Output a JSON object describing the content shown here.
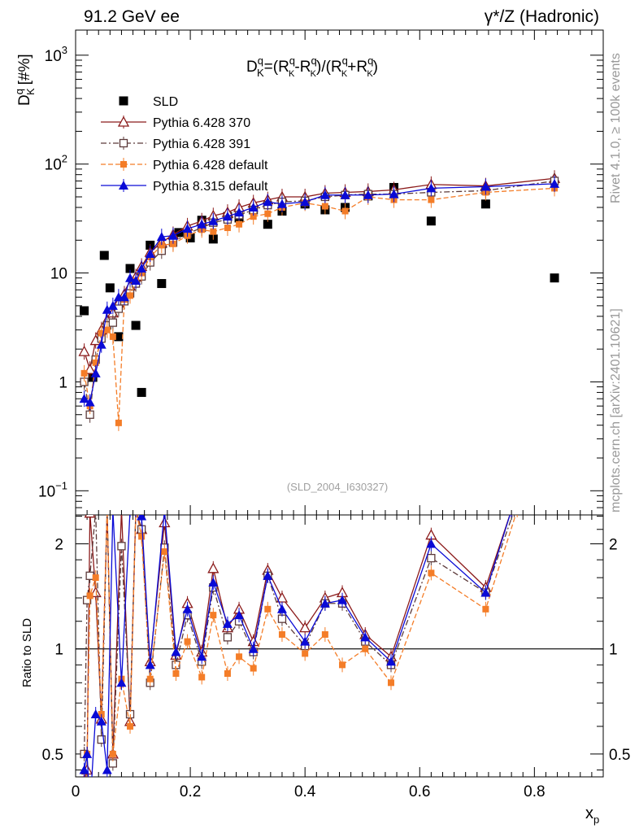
{
  "header": {
    "energy_label": "91.2 GeV ee",
    "process_label": "γ*/Z (Hadronic)"
  },
  "side_labels": {
    "rivet": "Rivet 4.1.0, ≥ 100k events",
    "mcplots": "mcplots.cern.ch [arXiv:2401.10621]"
  },
  "watermark": "(SLD_2004_I630327)",
  "formula": {
    "lhs": "D",
    "lhs_sup": "q",
    "lhs_sub": "K",
    "eq": "=(R",
    "r1_sup": "q",
    "r1_sub": "K",
    "minus": "-R",
    "r2_sup": "q",
    "r2_sub": "K",
    "mid": ")/(R",
    "r3_sup": "q",
    "r3_sub": "K",
    "plus": "+R",
    "r4_sup": "q",
    "r4_sub": "K",
    "close": ")"
  },
  "chart_data": {
    "type": "scatter",
    "main_panel": {
      "ylabel_main": "D",
      "ylabel_sup": "q",
      "ylabel_sub": "K",
      "ylabel_unit": "[#%]",
      "yscale": "log",
      "ylim": [
        0.06,
        1700
      ],
      "yticks": [
        {
          "value": 0.1,
          "label": "10",
          "sup": "−1"
        },
        {
          "value": 1,
          "label": "1",
          "sup": ""
        },
        {
          "value": 10,
          "label": "10",
          "sup": ""
        },
        {
          "value": 100,
          "label": "10",
          "sup": "2"
        },
        {
          "value": 1000,
          "label": "10",
          "sup": "3"
        }
      ]
    },
    "ratio_panel": {
      "ylabel": "Ratio to SLD",
      "yscale": "log",
      "ylim": [
        0.43,
        2.42
      ],
      "yticks_left": [
        {
          "value": 0.5,
          "label": "0.5"
        },
        {
          "value": 1,
          "label": "1"
        },
        {
          "value": 2,
          "label": "2"
        }
      ],
      "yticks_right": [
        {
          "value": 0.5,
          "label": "0.5"
        },
        {
          "value": 1,
          "label": "1"
        },
        {
          "value": 2,
          "label": "2"
        }
      ]
    },
    "x_axis": {
      "label": "x",
      "label_sub": "p",
      "xlim": [
        0,
        0.92
      ],
      "ticks": [
        {
          "value": 0,
          "label": "0"
        },
        {
          "value": 0.2,
          "label": "0.2"
        },
        {
          "value": 0.4,
          "label": "0.4"
        },
        {
          "value": 0.6,
          "label": "0.6"
        },
        {
          "value": 0.8,
          "label": "0.8"
        }
      ]
    },
    "legend": {
      "position": "top-left",
      "entries": [
        "SLD",
        "Pythia 6.428 370",
        "Pythia 6.428 391",
        "Pythia 6.428 default",
        "Pythia 8.315 default"
      ]
    },
    "series": [
      {
        "name": "SLD",
        "role": "data",
        "marker": "square-filled",
        "color": "#000000",
        "x": [
          0.015,
          0.03,
          0.05,
          0.06,
          0.075,
          0.095,
          0.105,
          0.115,
          0.13,
          0.15,
          0.18,
          0.2,
          0.22,
          0.24,
          0.265,
          0.285,
          0.31,
          0.335,
          0.36,
          0.4,
          0.435,
          0.47,
          0.51,
          0.555,
          0.62,
          0.715,
          0.835
        ],
        "y": [
          4.5,
          1.1,
          14.5,
          7.3,
          2.6,
          11.0,
          3.3,
          0.8,
          18.0,
          8.0,
          23.5,
          21.0,
          30.5,
          20.5,
          33.0,
          32.0,
          38.0,
          28.0,
          37.0,
          43.0,
          38.0,
          40.0,
          51.0,
          61.0,
          30.0,
          43.0,
          9.0
        ]
      },
      {
        "name": "Pythia 6.428 370",
        "marker": "triangle-open",
        "color": "#8b1a1a",
        "dash": "",
        "x": [
          0.015,
          0.025,
          0.035,
          0.045,
          0.055,
          0.065,
          0.075,
          0.085,
          0.095,
          0.105,
          0.115,
          0.13,
          0.15,
          0.17,
          0.195,
          0.22,
          0.24,
          0.265,
          0.285,
          0.31,
          0.335,
          0.36,
          0.4,
          0.435,
          0.47,
          0.51,
          0.555,
          0.62,
          0.715,
          0.835
        ],
        "y": [
          1.9,
          1.3,
          2.4,
          3.0,
          3.7,
          4.3,
          5.3,
          6.4,
          7.6,
          9.2,
          11.5,
          15.5,
          19.0,
          22.5,
          27.0,
          30.0,
          33.5,
          36.0,
          40.0,
          44.0,
          47.0,
          50.0,
          50.0,
          54.0,
          55.0,
          56.0,
          58.0,
          65.0,
          63.0,
          74.0
        ],
        "ratio": {
          "x": [
            0.015,
            0.02,
            0.025,
            0.035,
            0.045,
            0.055,
            0.065,
            0.08,
            0.095,
            0.105,
            0.115,
            0.13,
            0.155,
            0.175,
            0.195,
            0.22,
            0.24,
            0.265,
            0.285,
            0.31,
            0.335,
            0.36,
            0.4,
            0.435,
            0.465,
            0.505,
            0.55,
            0.62,
            0.715,
            0.76
          ],
          "y": [
            0.42,
            0.45,
            2.45,
            1.45,
            0.63,
            2.5,
            0.5,
            2.5,
            0.62,
            2.5,
            2.2,
            0.92,
            2.3,
            0.96,
            1.35,
            0.98,
            1.7,
            1.15,
            1.3,
            1.05,
            1.68,
            1.4,
            1.15,
            1.4,
            1.45,
            1.1,
            0.95,
            2.12,
            1.5,
            2.5
          ]
        }
      },
      {
        "name": "Pythia 6.428 391",
        "marker": "square-open",
        "color": "#5c3a3a",
        "dash": "7,3,2,3",
        "x": [
          0.015,
          0.025,
          0.035,
          0.045,
          0.055,
          0.065,
          0.075,
          0.085,
          0.095,
          0.105,
          0.115,
          0.13,
          0.15,
          0.17,
          0.195,
          0.22,
          0.24,
          0.265,
          0.285,
          0.31,
          0.335,
          0.36,
          0.4,
          0.435,
          0.47,
          0.51,
          0.555,
          0.62,
          0.715,
          0.835
        ],
        "y": [
          1.0,
          0.5,
          1.6,
          2.5,
          3.3,
          3.5,
          4.7,
          5.5,
          6.5,
          8.0,
          9.3,
          12.5,
          16.0,
          19.0,
          23.0,
          26.0,
          29.0,
          31.0,
          34.0,
          38.0,
          42.0,
          45.0,
          46.0,
          50.0,
          52.0,
          53.0,
          53.0,
          55.0,
          57.0,
          70.0
        ],
        "ratio": {
          "x": [
            0.015,
            0.02,
            0.025,
            0.035,
            0.045,
            0.055,
            0.065,
            0.08,
            0.095,
            0.105,
            0.115,
            0.13,
            0.155,
            0.175,
            0.195,
            0.22,
            0.24,
            0.265,
            0.285,
            0.31,
            0.335,
            0.36,
            0.4,
            0.435,
            0.465,
            0.505,
            0.55,
            0.62,
            0.715,
            0.765
          ],
          "y": [
            0.5,
            1.38,
            1.62,
            2.5,
            0.55,
            2.5,
            0.47,
            1.97,
            0.65,
            2.5,
            2.2,
            0.8,
            1.95,
            0.9,
            1.25,
            0.92,
            1.5,
            1.08,
            1.2,
            0.98,
            1.62,
            1.22,
            1.02,
            1.35,
            1.35,
            1.05,
            0.9,
            1.82,
            1.45,
            2.5
          ]
        }
      },
      {
        "name": "Pythia 6.428 default",
        "marker": "square-filled-small",
        "color": "#f47d28",
        "dash": "6,3",
        "x": [
          0.015,
          0.025,
          0.035,
          0.045,
          0.055,
          0.065,
          0.075,
          0.085,
          0.095,
          0.105,
          0.115,
          0.13,
          0.15,
          0.17,
          0.195,
          0.22,
          0.24,
          0.265,
          0.285,
          0.31,
          0.335,
          0.36,
          0.4,
          0.435,
          0.47,
          0.51,
          0.555,
          0.62,
          0.715,
          0.835
        ],
        "y": [
          1.2,
          0.6,
          1.5,
          2.8,
          3.0,
          2.6,
          0.42,
          5.7,
          6.2,
          8.5,
          10.0,
          14.0,
          18.0,
          18.5,
          22.0,
          25.0,
          24.0,
          26.0,
          28.0,
          33.0,
          35.0,
          40.0,
          44.0,
          41.0,
          37.0,
          50.0,
          47.0,
          47.0,
          55.0,
          60.0
        ],
        "ratio": {
          "x": [
            0.02,
            0.025,
            0.035,
            0.045,
            0.055,
            0.065,
            0.08,
            0.095,
            0.105,
            0.115,
            0.13,
            0.155,
            0.175,
            0.195,
            0.22,
            0.24,
            0.265,
            0.285,
            0.31,
            0.335,
            0.36,
            0.4,
            0.435,
            0.465,
            0.505,
            0.55,
            0.62,
            0.715,
            0.77
          ],
          "y": [
            0.5,
            1.42,
            1.6,
            0.65,
            2.5,
            0.5,
            0.82,
            0.6,
            2.5,
            2.1,
            0.82,
            1.9,
            0.85,
            1.05,
            0.83,
            1.25,
            0.85,
            0.95,
            0.88,
            1.3,
            1.1,
            0.97,
            1.1,
            0.9,
            1.0,
            0.8,
            1.65,
            1.3,
            2.5
          ]
        }
      },
      {
        "name": "Pythia 8.315 default",
        "marker": "triangle-filled",
        "color": "#0a0ad6",
        "dash": "",
        "x": [
          0.015,
          0.025,
          0.035,
          0.045,
          0.055,
          0.065,
          0.075,
          0.085,
          0.095,
          0.105,
          0.115,
          0.13,
          0.15,
          0.17,
          0.195,
          0.22,
          0.24,
          0.265,
          0.285,
          0.31,
          0.335,
          0.36,
          0.4,
          0.435,
          0.47,
          0.51,
          0.555,
          0.62,
          0.715,
          0.835
        ],
        "y": [
          0.7,
          0.65,
          1.2,
          2.2,
          4.6,
          5.0,
          6.0,
          6.0,
          9.0,
          8.5,
          11.0,
          15.0,
          21.5,
          22.0,
          25.5,
          28.0,
          30.0,
          33.0,
          36.0,
          40.0,
          45.0,
          43.0,
          45.0,
          52.0,
          52.0,
          52.0,
          53.0,
          60.0,
          62.0,
          66.0
        ],
        "ratio": {
          "x": [
            0.015,
            0.02,
            0.025,
            0.035,
            0.045,
            0.055,
            0.065,
            0.08,
            0.095,
            0.105,
            0.115,
            0.13,
            0.155,
            0.175,
            0.195,
            0.22,
            0.24,
            0.265,
            0.285,
            0.31,
            0.335,
            0.36,
            0.4,
            0.435,
            0.465,
            0.505,
            0.55,
            0.62,
            0.715,
            0.76
          ],
          "y": [
            0.45,
            0.5,
            0.35,
            0.65,
            0.62,
            0.45,
            2.5,
            0.8,
            2.5,
            2.5,
            2.4,
            0.9,
            2.5,
            0.98,
            1.3,
            0.95,
            1.55,
            1.18,
            1.25,
            1.0,
            1.62,
            1.3,
            1.05,
            1.35,
            1.38,
            1.08,
            0.92,
            2.0,
            1.45,
            2.5
          ]
        }
      }
    ]
  }
}
